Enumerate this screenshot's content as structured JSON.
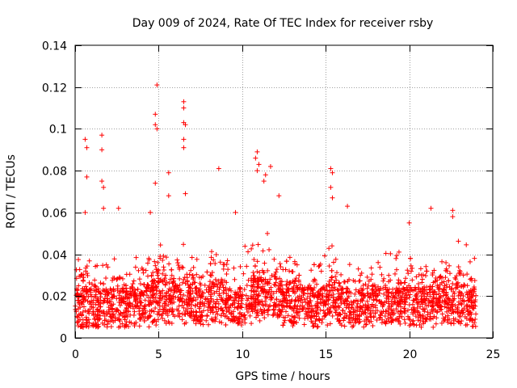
{
  "chart_data": {
    "type": "scatter",
    "title": "Day 009 of 2024, Rate Of TEC Index for receiver rsby",
    "xlabel": "GPS time / hours",
    "ylabel": "ROTI / TECUs",
    "xlim": [
      0,
      25
    ],
    "ylim": [
      0,
      0.14
    ],
    "x_ticks": [
      0,
      5,
      10,
      15,
      20,
      25
    ],
    "x_tick_labels": [
      "0",
      "5",
      "10",
      "15",
      "20",
      "25"
    ],
    "y_ticks": [
      0,
      0.02,
      0.04,
      0.06,
      0.08,
      0.1,
      0.12,
      0.14
    ],
    "y_tick_labels": [
      "0",
      "0.02",
      "0.04",
      "0.06",
      "0.08",
      "0.1",
      "0.12",
      "0.14"
    ],
    "grid": true,
    "marker": "+",
    "color": "#ff0000",
    "data_span_hours": [
      0,
      24
    ],
    "baseline_band": [
      0.005,
      0.03
    ],
    "outliers": [
      {
        "x": 0.6,
        "y": 0.095
      },
      {
        "x": 0.7,
        "y": 0.091
      },
      {
        "x": 0.7,
        "y": 0.077
      },
      {
        "x": 0.6,
        "y": 0.06
      },
      {
        "x": 1.6,
        "y": 0.097
      },
      {
        "x": 1.6,
        "y": 0.09
      },
      {
        "x": 1.6,
        "y": 0.075
      },
      {
        "x": 1.7,
        "y": 0.072
      },
      {
        "x": 1.7,
        "y": 0.062
      },
      {
        "x": 2.6,
        "y": 0.062
      },
      {
        "x": 4.5,
        "y": 0.06
      },
      {
        "x": 4.9,
        "y": 0.121
      },
      {
        "x": 4.8,
        "y": 0.107
      },
      {
        "x": 4.8,
        "y": 0.102
      },
      {
        "x": 4.9,
        "y": 0.1
      },
      {
        "x": 4.8,
        "y": 0.074
      },
      {
        "x": 5.6,
        "y": 0.079
      },
      {
        "x": 5.6,
        "y": 0.068
      },
      {
        "x": 6.5,
        "y": 0.113
      },
      {
        "x": 6.5,
        "y": 0.11
      },
      {
        "x": 6.5,
        "y": 0.103
      },
      {
        "x": 6.6,
        "y": 0.102
      },
      {
        "x": 6.5,
        "y": 0.095
      },
      {
        "x": 6.5,
        "y": 0.091
      },
      {
        "x": 6.6,
        "y": 0.069
      },
      {
        "x": 8.6,
        "y": 0.081
      },
      {
        "x": 9.6,
        "y": 0.06
      },
      {
        "x": 10.9,
        "y": 0.089
      },
      {
        "x": 10.8,
        "y": 0.086
      },
      {
        "x": 11.0,
        "y": 0.083
      },
      {
        "x": 10.9,
        "y": 0.08
      },
      {
        "x": 11.4,
        "y": 0.078
      },
      {
        "x": 11.3,
        "y": 0.075
      },
      {
        "x": 11.7,
        "y": 0.082
      },
      {
        "x": 12.2,
        "y": 0.068
      },
      {
        "x": 15.3,
        "y": 0.081
      },
      {
        "x": 15.4,
        "y": 0.079
      },
      {
        "x": 15.3,
        "y": 0.072
      },
      {
        "x": 15.4,
        "y": 0.067
      },
      {
        "x": 16.3,
        "y": 0.063
      },
      {
        "x": 20.0,
        "y": 0.055
      },
      {
        "x": 21.3,
        "y": 0.062
      },
      {
        "x": 22.6,
        "y": 0.061
      },
      {
        "x": 22.6,
        "y": 0.058
      }
    ]
  }
}
